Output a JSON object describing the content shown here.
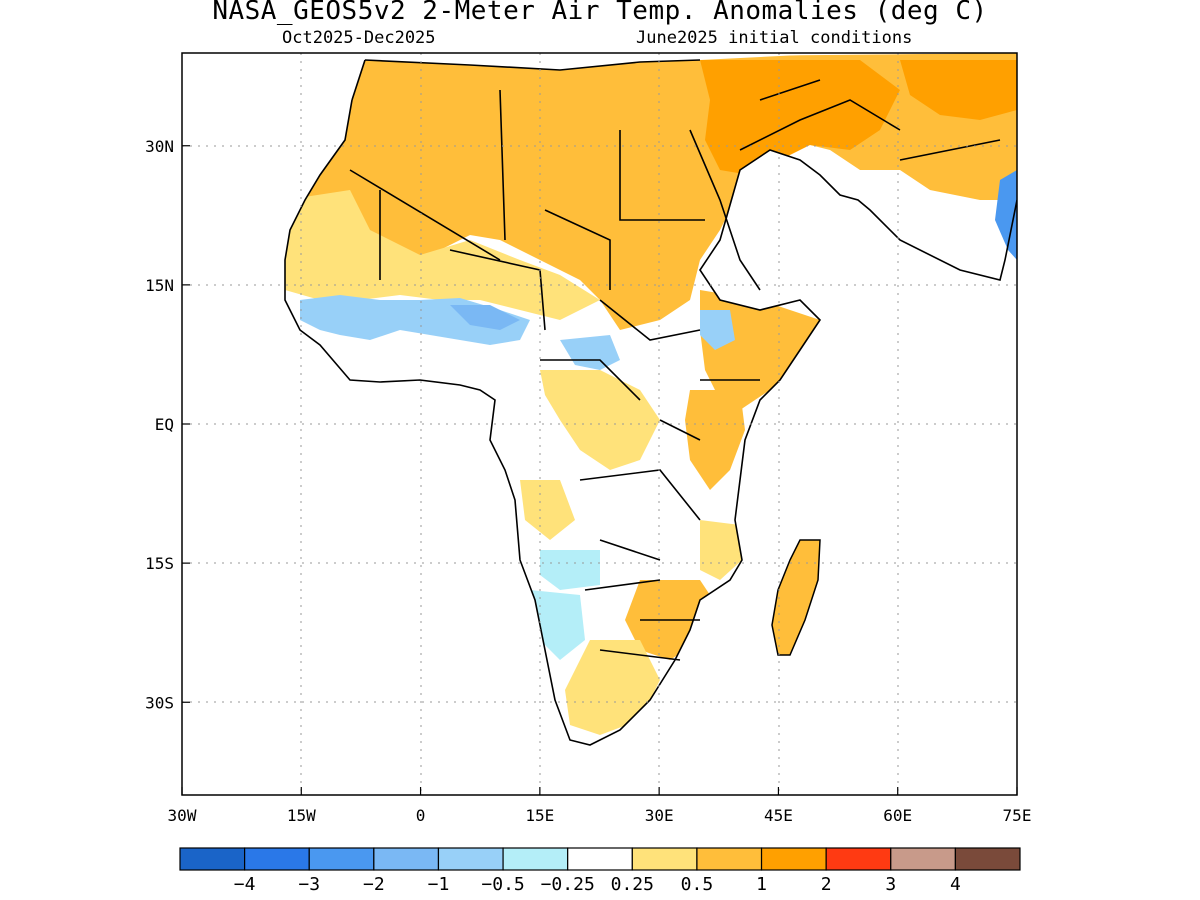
{
  "header": {
    "title": "NASA_GEOS5v2 2-Meter Air Temp. Anomalies (deg C)",
    "period": "Oct2025-Dec2025",
    "init": "June2025 initial conditions"
  },
  "map": {
    "lon_range": [
      -30,
      75
    ],
    "lat_range": [
      -40,
      40
    ],
    "lon_ticks": [
      {
        "value": -30,
        "label": "30W"
      },
      {
        "value": -15,
        "label": "15W"
      },
      {
        "value": 0,
        "label": "0"
      },
      {
        "value": 15,
        "label": "15E"
      },
      {
        "value": 30,
        "label": "30E"
      },
      {
        "value": 45,
        "label": "45E"
      },
      {
        "value": 60,
        "label": "60E"
      },
      {
        "value": 75,
        "label": "75E"
      }
    ],
    "lat_ticks": [
      {
        "value": 30,
        "label": "30N"
      },
      {
        "value": 15,
        "label": "15N"
      },
      {
        "value": 0,
        "label": "EQ"
      },
      {
        "value": -15,
        "label": "15S"
      },
      {
        "value": -30,
        "label": "30S"
      }
    ],
    "grid": "dotted"
  },
  "colorbar": {
    "colors": [
      "#1a64c8",
      "#2a78e8",
      "#4a98f0",
      "#7ab8f4",
      "#98d0f8",
      "#b4eef8",
      "#ffffff",
      "#ffe27a",
      "#ffbe3a",
      "#ffa000",
      "#ff3a12",
      "#c89a8a",
      "#7a4a3a"
    ],
    "labels": [
      "-4",
      "-3",
      "-2",
      "-1",
      "-0.5",
      "-0.25",
      "0.25",
      "0.5",
      "1",
      "2",
      "3",
      "4"
    ]
  }
}
